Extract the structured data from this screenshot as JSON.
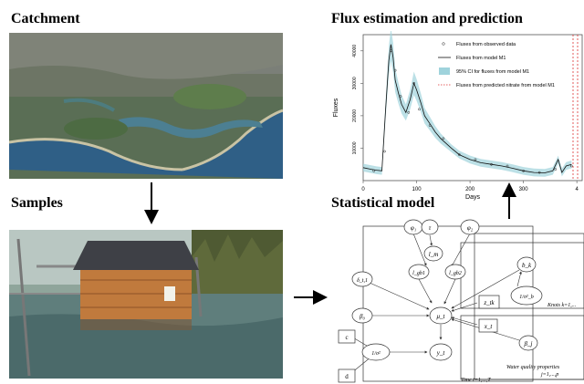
{
  "headings": {
    "catchment": "Catchment",
    "samples": "Samples",
    "flux": "Flux estimation and prediction",
    "model": "Statistical model"
  },
  "chart_data": {
    "type": "line",
    "title": "",
    "xlabel": "Days",
    "ylabel": "Fluxes",
    "xlim": [
      0,
      410
    ],
    "ylim": [
      0,
      45000
    ],
    "x_ticks": [
      "0",
      "100",
      "200",
      "300",
      "4"
    ],
    "y_ticks": [
      "10000",
      "20000",
      "30000",
      "40000"
    ],
    "legend_position": "top-right",
    "series": [
      {
        "name": "Fluxes from observed data",
        "style": "points",
        "x": [
          20,
          40,
          52,
          60,
          70,
          85,
          95,
          105,
          125,
          150,
          180,
          210,
          240,
          270,
          300,
          330,
          360,
          390
        ],
        "y": [
          3000,
          9000,
          40000,
          34000,
          26000,
          21000,
          30000,
          22000,
          17000,
          13000,
          8000,
          6500,
          5000,
          4500,
          3000,
          2500,
          3500,
          4500
        ]
      },
      {
        "name": "Fluxes from model M1",
        "style": "line",
        "x": [
          0,
          15,
          25,
          35,
          42,
          48,
          52,
          56,
          60,
          66,
          72,
          80,
          88,
          95,
          100,
          108,
          115,
          125,
          135,
          145,
          155,
          165,
          180,
          200,
          220,
          240,
          260,
          280,
          300,
          320,
          340,
          355,
          365,
          372,
          380,
          390
        ],
        "y": [
          4000,
          3500,
          3200,
          3000,
          22000,
          37000,
          42000,
          38000,
          31000,
          27000,
          23500,
          21000,
          25000,
          30000,
          28000,
          24000,
          20000,
          17500,
          15000,
          13000,
          11500,
          10000,
          8000,
          6500,
          5500,
          5000,
          4500,
          3800,
          3000,
          2500,
          2400,
          3000,
          6500,
          2500,
          4500,
          5000
        ]
      },
      {
        "name": "95% CI for fluxes from model M1",
        "style": "band"
      },
      {
        "name": "Fluxes from predicted nitrate from model M1",
        "style": "dotted"
      }
    ]
  },
  "model": {
    "nodes": {
      "phi1": "φ₁",
      "tau": "τ",
      "phi2": "φ₂",
      "lm": "l_m",
      "lgb1": "l_gb1",
      "lgb2": "l_gb2",
      "delta": "δ_t,1",
      "beta0": "β₀",
      "mu": "μ_t",
      "z": "z_tk",
      "x": "x_t",
      "b": "b_k",
      "sigma_b": "1/σ²_b",
      "beta_j": "β_j",
      "c": "c",
      "d": "d",
      "sigma": "1/σ²",
      "y": "y_t"
    },
    "plates": {
      "knots": "Knots k=1,...",
      "water": "Water quality properties",
      "water_index": "j=1,...,p",
      "time": "Time t=1,...,T"
    }
  }
}
